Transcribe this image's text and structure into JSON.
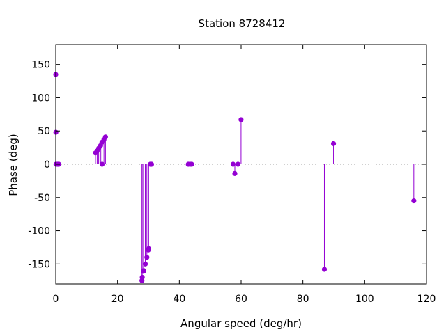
{
  "chart_data": {
    "type": "scatter",
    "style": "impulses-with-points",
    "title": "Station 8728412",
    "xlabel": "Angular speed (deg/hr)",
    "ylabel": "Phase (deg)",
    "xlim": [
      0,
      120
    ],
    "ylim": [
      -180,
      180
    ],
    "xticks": [
      0,
      20,
      40,
      60,
      80,
      100,
      120
    ],
    "yticks": [
      -150,
      -100,
      -50,
      0,
      50,
      100,
      150
    ],
    "xtick_labels": [
      "0",
      "20",
      "40",
      "60",
      "80",
      "100",
      "120"
    ],
    "ytick_labels": [
      "-150",
      "-100",
      "-50",
      "0",
      "50",
      "100",
      "150"
    ],
    "zero_line": true,
    "grid": false,
    "series_color": "#9400d3",
    "points": [
      {
        "x": 0.0,
        "y": 135
      },
      {
        "x": 0.04,
        "y": 48
      },
      {
        "x": 0.08,
        "y": 0
      },
      {
        "x": 0.5,
        "y": 0
      },
      {
        "x": 0.8,
        "y": 0
      },
      {
        "x": 1.0,
        "y": 0
      },
      {
        "x": 12.85,
        "y": 17
      },
      {
        "x": 13.4,
        "y": 20
      },
      {
        "x": 13.9,
        "y": 24
      },
      {
        "x": 14.5,
        "y": 28
      },
      {
        "x": 14.96,
        "y": 33
      },
      {
        "x": 15.0,
        "y": 0
      },
      {
        "x": 15.6,
        "y": 37
      },
      {
        "x": 16.1,
        "y": 41
      },
      {
        "x": 27.9,
        "y": -175
      },
      {
        "x": 28.0,
        "y": -170
      },
      {
        "x": 28.4,
        "y": -161
      },
      {
        "x": 28.5,
        "y": -160
      },
      {
        "x": 28.98,
        "y": -150
      },
      {
        "x": 29.5,
        "y": -140
      },
      {
        "x": 29.96,
        "y": -129
      },
      {
        "x": 30.08,
        "y": -127
      },
      {
        "x": 30.6,
        "y": 0
      },
      {
        "x": 31.0,
        "y": 0
      },
      {
        "x": 42.9,
        "y": 0
      },
      {
        "x": 43.5,
        "y": 0
      },
      {
        "x": 44.0,
        "y": 0
      },
      {
        "x": 57.4,
        "y": 0
      },
      {
        "x": 57.97,
        "y": -14
      },
      {
        "x": 58.98,
        "y": 0
      },
      {
        "x": 59.98,
        "y": 67
      },
      {
        "x": 86.95,
        "y": -158
      },
      {
        "x": 89.9,
        "y": 31
      },
      {
        "x": 115.9,
        "y": -55
      }
    ]
  }
}
